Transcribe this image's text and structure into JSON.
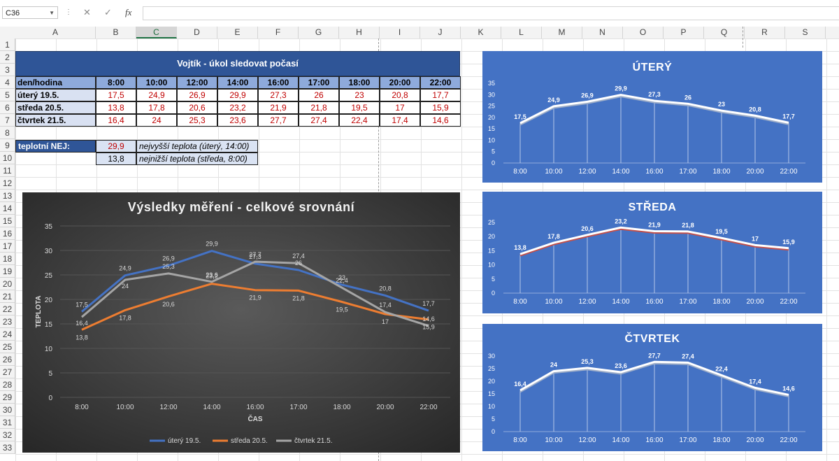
{
  "formula_bar": {
    "name_box": "C36",
    "cancel_icon": "✕",
    "enter_icon": "✓",
    "fx_label": "fx",
    "value": ""
  },
  "columns": [
    "A",
    "B",
    "C",
    "D",
    "E",
    "F",
    "G",
    "H",
    "I",
    "J",
    "K",
    "L",
    "M",
    "N",
    "O",
    "P",
    "Q",
    "R",
    "S"
  ],
  "selected_column": "C",
  "rows": [
    "1",
    "2",
    "3",
    "4",
    "5",
    "6",
    "7",
    "8",
    "9",
    "10",
    "11",
    "12",
    "13",
    "14",
    "15",
    "16",
    "17",
    "18",
    "19",
    "20",
    "21",
    "22",
    "23",
    "24",
    "25",
    "26",
    "27",
    "28",
    "29",
    "30",
    "31",
    "32",
    "33"
  ],
  "table": {
    "title": "Vojtík - úkol sledovat počasí",
    "header_label": "den/hodina",
    "times": [
      "8:00",
      "10:00",
      "12:00",
      "14:00",
      "16:00",
      "17:00",
      "18:00",
      "20:00",
      "22:00"
    ],
    "rows": [
      {
        "day": "úterý 19.5.",
        "values": [
          "17,5",
          "24,9",
          "26,9",
          "29,9",
          "27,3",
          "26",
          "23",
          "20,8",
          "17,7"
        ]
      },
      {
        "day": "středa 20.5.",
        "values": [
          "13,8",
          "17,8",
          "20,6",
          "23,2",
          "21,9",
          "21,8",
          "19,5",
          "17",
          "15,9"
        ]
      },
      {
        "day": "čtvrtek 21.5.",
        "values": [
          "16,4",
          "24",
          "25,3",
          "23,6",
          "27,7",
          "27,4",
          "22,4",
          "17,4",
          "14,6"
        ]
      }
    ],
    "extremes_label": "teplotní NEJ:",
    "max_value": "29,9",
    "max_note": "nejvyšší teplota (úterý, 14:00)",
    "min_value": "13,8",
    "min_note": "nejnižší teplota (středa, 8:00)"
  },
  "chart_data": [
    {
      "type": "line",
      "title": "Výsledky měření - celkové srovnání",
      "xlabel": "ČAS",
      "ylabel": "TEPLOTA",
      "categories": [
        "8:00",
        "10:00",
        "12:00",
        "14:00",
        "16:00",
        "17:00",
        "18:00",
        "20:00",
        "22:00"
      ],
      "ylim": [
        0,
        35
      ],
      "yticks": [
        "0",
        "5",
        "10",
        "15",
        "20",
        "25",
        "30",
        "35"
      ],
      "legend_position": "bottom",
      "grid": true,
      "series": [
        {
          "name": "úterý 19.5.",
          "color": "#4472c4",
          "values": [
            17.5,
            24.9,
            26.9,
            29.9,
            27.3,
            26,
            23,
            20.8,
            17.7
          ],
          "labels": [
            "17,5",
            "24,9",
            "26,9",
            "29,9",
            "27,3",
            "26",
            "23",
            "20,8",
            "17,7"
          ]
        },
        {
          "name": "středa 20.5.",
          "color": "#ed7d31",
          "values": [
            13.8,
            17.8,
            20.6,
            23.2,
            21.9,
            21.8,
            19.5,
            17,
            15.9
          ],
          "labels": [
            "13,8",
            "17,8",
            "20,6",
            "23,2",
            "21,9",
            "21,8",
            "19,5",
            "17",
            "15,9"
          ]
        },
        {
          "name": "čtvrtek 21.5.",
          "color": "#a5a5a5",
          "values": [
            16.4,
            24,
            25.3,
            23.6,
            27.7,
            27.4,
            22.4,
            17.4,
            14.6
          ],
          "labels": [
            "16,4",
            "24",
            "25,3",
            "23,6",
            "27,7",
            "27,4",
            "22,4",
            "17,4",
            "14,6"
          ]
        }
      ]
    },
    {
      "type": "line",
      "title": "ÚTERÝ",
      "categories": [
        "8:00",
        "10:00",
        "12:00",
        "14:00",
        "16:00",
        "17:00",
        "18:00",
        "20:00",
        "22:00"
      ],
      "ylim": [
        0,
        35
      ],
      "yticks": [
        "0",
        "5",
        "10",
        "15",
        "20",
        "25",
        "30",
        "35"
      ],
      "series": [
        {
          "color": "#ffffff",
          "values": [
            17.5,
            24.9,
            26.9,
            29.9,
            27.3,
            26,
            23,
            20.8,
            17.7
          ],
          "labels": [
            "17,5",
            "24,9",
            "26,9",
            "29,9",
            "27,3",
            "26",
            "23",
            "20,8",
            "17,7"
          ]
        }
      ]
    },
    {
      "type": "line",
      "title": "STŘEDA",
      "categories": [
        "8:00",
        "10:00",
        "12:00",
        "14:00",
        "16:00",
        "17:00",
        "18:00",
        "20:00",
        "22:00"
      ],
      "ylim": [
        0,
        25
      ],
      "yticks": [
        "0",
        "5",
        "10",
        "15",
        "20",
        "25"
      ],
      "series": [
        {
          "color": "#ffffff",
          "values": [
            13.8,
            17.8,
            20.6,
            23.2,
            21.9,
            21.8,
            19.5,
            17,
            15.9
          ],
          "labels": [
            "13,8",
            "17,8",
            "20,6",
            "23,2",
            "21,9",
            "21,8",
            "19,5",
            "17",
            "15,9"
          ]
        }
      ]
    },
    {
      "type": "line",
      "title": "ČTVRTEK",
      "categories": [
        "8:00",
        "10:00",
        "12:00",
        "14:00",
        "16:00",
        "17:00",
        "18:00",
        "20:00",
        "22:00"
      ],
      "ylim": [
        0,
        30
      ],
      "yticks": [
        "0",
        "5",
        "10",
        "15",
        "20",
        "25",
        "30"
      ],
      "series": [
        {
          "color": "#ffffff",
          "values": [
            16.4,
            24,
            25.3,
            23.6,
            27.7,
            27.4,
            22.4,
            17.4,
            14.6
          ],
          "labels": [
            "16,4",
            "24",
            "25,3",
            "23,6",
            "27,7",
            "27,4",
            "22,4",
            "17,4",
            "14,6"
          ]
        }
      ]
    }
  ]
}
